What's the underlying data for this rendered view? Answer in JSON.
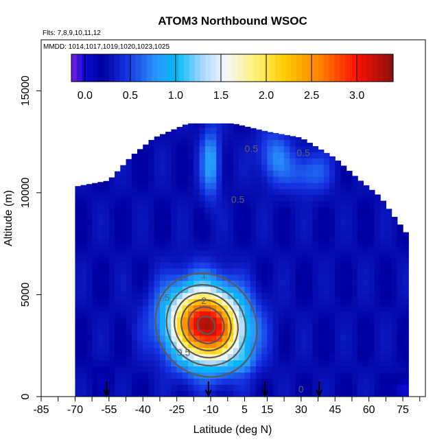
{
  "chart_data": {
    "type": "heatmap",
    "title": "ATOM3 Northbound WSOC",
    "subtitle_flights": "Flts: 7,8,9,10,11,12",
    "subtitle_dates": "MMDD: 1014,1017,1019,1020,1023,1025",
    "xlabel": "Latitude (deg N)",
    "ylabel": "Altitude (m)",
    "xlim": [
      -85,
      85
    ],
    "ylim": [
      0,
      17500
    ],
    "x_ticks": [
      -85,
      -70,
      -55,
      -40,
      -25,
      -10,
      5,
      15,
      30,
      45,
      60,
      75
    ],
    "x_minor_ticks": [
      -77.5,
      -62.5,
      -47.5,
      -32.5,
      -17.5,
      -2.5,
      22.5,
      37.5,
      52.5,
      67.5,
      82.5
    ],
    "y_ticks": [
      0,
      5000,
      10000,
      15000
    ],
    "colorbar": {
      "range": [
        -0.15,
        3.4
      ],
      "ticks": [
        0.0,
        0.5,
        1.0,
        1.5,
        2.0,
        2.5,
        3.0
      ],
      "tick_labels": [
        "0.0",
        "0.5",
        "1.0",
        "1.5",
        "2.0",
        "2.5",
        "3.0"
      ],
      "stops": [
        [
          -0.15,
          "#7a1fe0"
        ],
        [
          0.0,
          "#0a0ad0"
        ],
        [
          0.2,
          "#0000a0"
        ],
        [
          0.45,
          "#1530e0"
        ],
        [
          0.8,
          "#2a9aff"
        ],
        [
          1.0,
          "#00b8f5"
        ],
        [
          1.3,
          "#a8d8ff"
        ],
        [
          1.55,
          "#f4f8ff"
        ],
        [
          1.9,
          "#fff070"
        ],
        [
          2.2,
          "#ffcc00"
        ],
        [
          2.6,
          "#ff8000"
        ],
        [
          3.0,
          "#ff1000"
        ],
        [
          3.4,
          "#8a1010"
        ]
      ]
    },
    "field": {
      "background": 0.25,
      "ceiling_profile": [
        [
          -70,
          10300
        ],
        [
          -55,
          10600
        ],
        [
          -45,
          11800
        ],
        [
          -35,
          12700
        ],
        [
          -20,
          13400
        ],
        [
          0,
          13400
        ],
        [
          15,
          13000
        ],
        [
          30,
          12700
        ],
        [
          45,
          11700
        ],
        [
          55,
          10700
        ],
        [
          65,
          9800
        ],
        [
          72,
          8700
        ],
        [
          78,
          7800
        ]
      ],
      "plume": {
        "lat": -12,
        "alt": 3500,
        "peak": 3.1,
        "sigma_lat": 11,
        "sigma_alt": 1300
      },
      "extra_features": [
        {
          "lat": -10,
          "alt": 11500,
          "value": 0.85,
          "sigma_lat": 3,
          "sigma_alt": 1200
        },
        {
          "lat": 18,
          "alt": 11800,
          "value": 0.7,
          "sigma_lat": 5,
          "sigma_alt": 900
        },
        {
          "lat": 33,
          "alt": 11000,
          "value": 0.65,
          "sigma_lat": 7,
          "sigma_alt": 700
        },
        {
          "lat": 5,
          "alt": 1800,
          "value": 0.55,
          "sigma_lat": 3,
          "sigma_alt": 400
        },
        {
          "lat": -58,
          "alt": 900,
          "value": 0.15,
          "sigma_lat": 3,
          "sigma_alt": 500
        },
        {
          "lat": 76,
          "alt": 300,
          "value": -0.1,
          "sigma_lat": 3,
          "sigma_alt": 400
        }
      ]
    },
    "contour_levels": [
      0.5,
      1,
      1.5,
      2,
      2.5,
      3
    ],
    "contour_labels": [
      {
        "text": "1.5",
        "lat": -31,
        "alt": 4700
      },
      {
        "text": "2",
        "lat": -13,
        "alt": 4550
      },
      {
        "text": "1",
        "lat": -13,
        "alt": 5800
      },
      {
        "text": "0.5",
        "lat": -22,
        "alt": 2000
      },
      {
        "text": "0.5",
        "lat": 2,
        "alt": 9500
      },
      {
        "text": "0.5",
        "lat": 8,
        "alt": 12000
      },
      {
        "text": "0.5",
        "lat": 31,
        "alt": 11800
      },
      {
        "text": "0",
        "lat": 30,
        "alt": 200
      }
    ],
    "arrows_lat": [
      -56,
      -11,
      14,
      38
    ]
  }
}
